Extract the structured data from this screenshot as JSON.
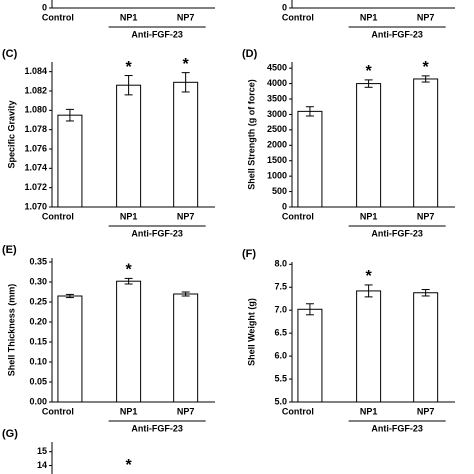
{
  "chart_data": [
    {
      "type": "bar",
      "categories": [
        "Control",
        "NP1",
        "NP7"
      ],
      "group_label": "Anti-FGF-23",
      "yticks": [
        0
      ]
    },
    {
      "type": "bar",
      "categories": [
        "Control",
        "NP1",
        "NP7"
      ],
      "group_label": "Anti-FGF-23",
      "yticks": [
        0
      ]
    },
    {
      "type": "bar",
      "panel_label": "(C)",
      "ylabel": "Specific Gravity",
      "categories": [
        "Control",
        "NP1",
        "NP7"
      ],
      "group_label": "Anti-FGF-23",
      "values": [
        1.0795,
        1.0826,
        1.0829
      ],
      "errors": [
        0.0006,
        0.001,
        0.001
      ],
      "annotations": [
        null,
        "*",
        "*"
      ],
      "color": "#ffffff",
      "ylim": [
        1.07,
        1.085
      ],
      "yticks": [
        {
          "value": 1.07,
          "label": "1.070"
        },
        1.072,
        1.074,
        1.076,
        1.078,
        {
          "value": 1.08,
          "label": "1.080"
        },
        1.082,
        1.084
      ]
    },
    {
      "type": "bar",
      "panel_label": "(D)",
      "ylabel": "Shell Strength (g of force)",
      "categories": [
        "Control",
        "NP1",
        "NP7"
      ],
      "group_label": "Anti-FGF-23",
      "values": [
        3100,
        4000,
        4150
      ],
      "errors": [
        150,
        120,
        100
      ],
      "annotations": [
        null,
        "*",
        "*"
      ],
      "color": "#ffffff",
      "ylim": [
        0,
        4700
      ],
      "yticks": [
        0,
        500,
        1000,
        1500,
        2000,
        2500,
        3000,
        3500,
        4000,
        4500
      ]
    },
    {
      "type": "bar",
      "panel_label": "(E)",
      "ylabel": "Shell Thickness (mm)",
      "categories": [
        "Control",
        "NP1",
        "NP7"
      ],
      "group_label": "Anti-FGF-23",
      "values": [
        0.265,
        0.302,
        0.27
      ],
      "errors": [
        0.004,
        0.007,
        0.005
      ],
      "annotations": [
        null,
        "*",
        null
      ],
      "color": "#ffffff",
      "ylim": [
        0,
        0.36
      ],
      "yticks": [
        {
          "value": 0,
          "label": "0.00"
        },
        0.05,
        {
          "value": 0.1,
          "label": "0.10"
        },
        0.15,
        {
          "value": 0.2,
          "label": "0.20"
        },
        0.25,
        {
          "value": 0.3,
          "label": "0.30"
        },
        0.35
      ]
    },
    {
      "type": "bar",
      "panel_label": "(F)",
      "ylabel": "Shell Weight (g)",
      "categories": [
        "Control",
        "NP1",
        "NP7"
      ],
      "group_label": "Anti-FGF-23",
      "values": [
        7.02,
        7.42,
        7.38
      ],
      "errors": [
        0.12,
        0.13,
        0.07
      ],
      "annotations": [
        null,
        "*",
        null
      ],
      "color": "#ffffff",
      "ylim": [
        5,
        8.05
      ],
      "yticks": [
        {
          "value": 5,
          "label": "5.0"
        },
        5.5,
        {
          "value": 6,
          "label": "6.0"
        },
        6.5,
        {
          "value": 7,
          "label": "7.0"
        },
        7.5,
        {
          "value": 8,
          "label": "8.0"
        }
      ]
    },
    {
      "type": "bar",
      "panel_label": "(G)",
      "annotations": [
        null,
        "*",
        null
      ],
      "ylim": [
        13.1,
        15.7
      ],
      "yticks": [
        14,
        15
      ]
    }
  ]
}
